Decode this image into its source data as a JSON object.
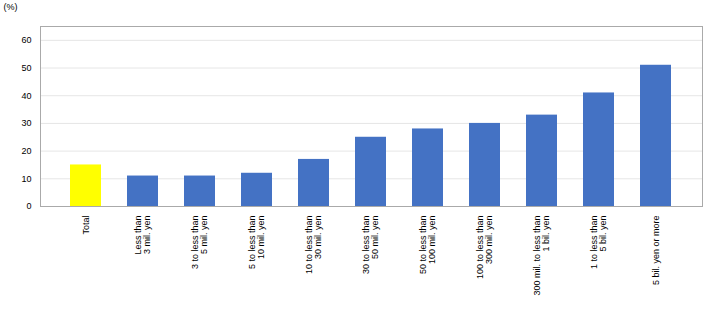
{
  "chart_data": {
    "type": "bar",
    "categories": [
      "Total",
      "Less than\n3 mil. yen",
      "3 to less than\n5 mil. yen",
      "5 to less than\n10 mil. yen",
      "10 to less than\n30 mil. yen",
      "30 to less than\n50 mil. yen",
      "50 to less than\n100 mil. yen",
      "100 to less than\n300 mil. yen",
      "300 mil. to less than\n1 bil. yen",
      "1 to less than\n5 bil. yen",
      "5 bil. yen or more"
    ],
    "values": [
      15.0,
      11.0,
      11.0,
      12.0,
      17.0,
      25.0,
      28.0,
      30.0,
      33.0,
      41.0,
      51.0
    ],
    "colors": [
      "#ffff00",
      "#4472c4",
      "#4472c4",
      "#4472c4",
      "#4472c4",
      "#4472c4",
      "#4472c4",
      "#4472c4",
      "#4472c4",
      "#4472c4",
      "#4472c4"
    ],
    "ylabel": "(%)",
    "ylim": [
      0,
      65
    ],
    "yticks": [
      0,
      10,
      20,
      30,
      40,
      50,
      60
    ],
    "grid": true
  }
}
